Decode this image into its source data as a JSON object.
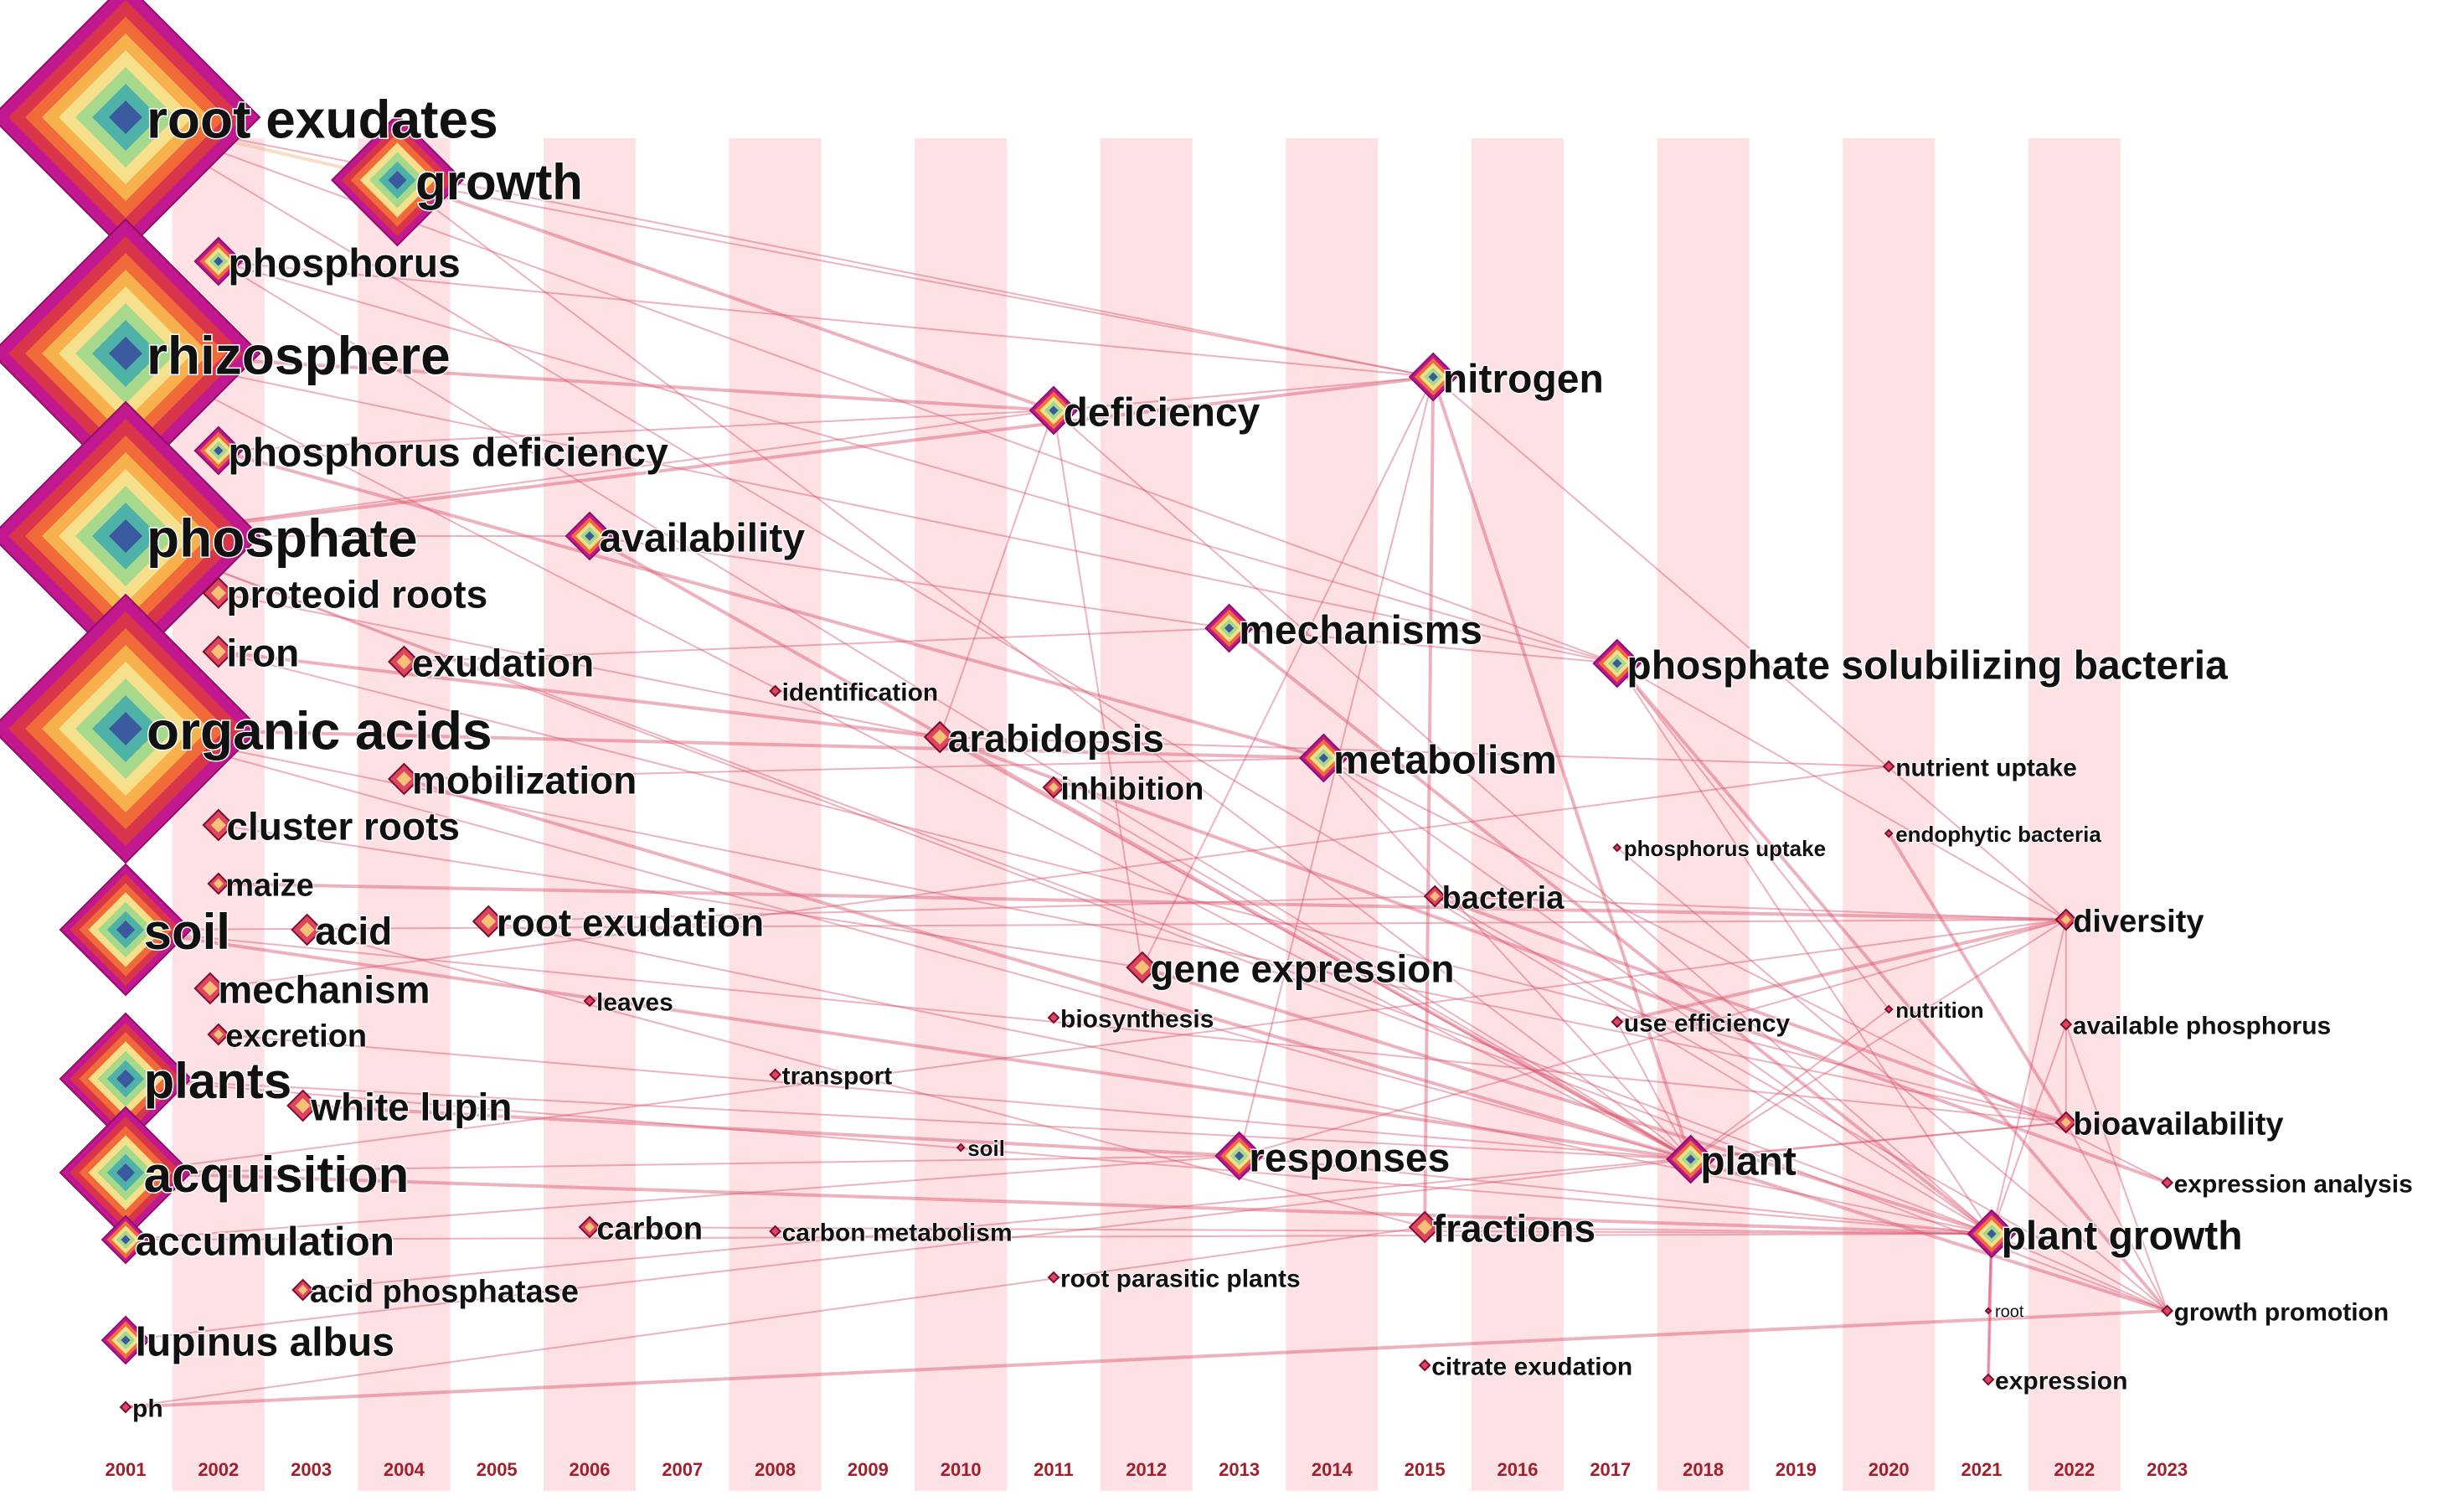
{
  "years": [
    "2001",
    "2002",
    "2003",
    "2004",
    "2005",
    "2006",
    "2007",
    "2008",
    "2009",
    "2010",
    "2011",
    "2012",
    "2013",
    "2014",
    "2015",
    "2016",
    "2017",
    "2018",
    "2019",
    "2020",
    "2021",
    "2022",
    "2023"
  ],
  "keywords": [
    {
      "id": "root-exudates",
      "label": "root exudates",
      "year": "2001",
      "rank": 1
    },
    {
      "id": "growth",
      "label": "growth",
      "year": "2004",
      "rank": 2
    },
    {
      "id": "phosphorus",
      "label": "phosphorus",
      "year": "2002",
      "rank": 3
    },
    {
      "id": "rhizosphere",
      "label": "rhizosphere",
      "year": "2001",
      "rank": 1
    },
    {
      "id": "phosphorus-deficiency",
      "label": "phosphorus deficiency",
      "year": "2002",
      "rank": 3
    },
    {
      "id": "phosphate",
      "label": "phosphate",
      "year": "2001",
      "rank": 1
    },
    {
      "id": "proteoid-roots",
      "label": "proteoid roots",
      "year": "2002",
      "rank": 4
    },
    {
      "id": "iron",
      "label": "iron",
      "year": "2002",
      "rank": 4
    },
    {
      "id": "organic-acids",
      "label": "organic acids",
      "year": "2001",
      "rank": 1
    },
    {
      "id": "cluster-roots",
      "label": "cluster roots",
      "year": "2002",
      "rank": 4
    },
    {
      "id": "maize",
      "label": "maize",
      "year": "2002",
      "rank": 5
    },
    {
      "id": "soil",
      "label": "soil",
      "year": "2001",
      "rank": 2
    },
    {
      "id": "acid",
      "label": "acid",
      "year": "2003",
      "rank": 4
    },
    {
      "id": "mechanism",
      "label": "mechanism",
      "year": "2002",
      "rank": 4
    },
    {
      "id": "excretion",
      "label": "excretion",
      "year": "2002",
      "rank": 5
    },
    {
      "id": "plants",
      "label": "plants",
      "year": "2001",
      "rank": 2
    },
    {
      "id": "white-lupin",
      "label": "white lupin",
      "year": "2003",
      "rank": 4
    },
    {
      "id": "acquisition",
      "label": "acquisition",
      "year": "2001",
      "rank": 2
    },
    {
      "id": "accumulation",
      "label": "accumulation",
      "year": "2001",
      "rank": 3
    },
    {
      "id": "acid-phosphatase",
      "label": "acid phosphatase",
      "year": "2003",
      "rank": 5
    },
    {
      "id": "lupinus-albus",
      "label": "lupinus albus",
      "year": "2001",
      "rank": 3
    },
    {
      "id": "ph",
      "label": "ph",
      "year": "2001",
      "rank": 6
    },
    {
      "id": "exudation",
      "label": "exudation",
      "year": "2004",
      "rank": 4
    },
    {
      "id": "mobilization",
      "label": "mobilization",
      "year": "2004",
      "rank": 4
    },
    {
      "id": "root-exudation",
      "label": "root exudation",
      "year": "2005",
      "rank": 4
    },
    {
      "id": "leaves",
      "label": "leaves",
      "year": "2006",
      "rank": 6
    },
    {
      "id": "availability",
      "label": "availability",
      "year": "2006",
      "rank": 3
    },
    {
      "id": "carbon",
      "label": "carbon",
      "year": "2006",
      "rank": 5
    },
    {
      "id": "identification",
      "label": "identification",
      "year": "2008",
      "rank": 6
    },
    {
      "id": "transport",
      "label": "transport",
      "year": "2008",
      "rank": 6
    },
    {
      "id": "carbon-metabolism",
      "label": "carbon metabolism",
      "year": "2008",
      "rank": 6
    },
    {
      "id": "soil-small",
      "label": "soil",
      "year": "2010",
      "rank": 7
    },
    {
      "id": "deficiency",
      "label": "deficiency",
      "year": "2011",
      "rank": 3
    },
    {
      "id": "arabidopsis",
      "label": "arabidopsis",
      "year": "2010",
      "rank": 4
    },
    {
      "id": "inhibition",
      "label": "inhibition",
      "year": "2011",
      "rank": 5
    },
    {
      "id": "biosynthesis",
      "label": "biosynthesis",
      "year": "2011",
      "rank": 6
    },
    {
      "id": "root-parasitic-plants",
      "label": "root parasitic plants",
      "year": "2011",
      "rank": 6
    },
    {
      "id": "gene-expression",
      "label": "gene expression",
      "year": "2012",
      "rank": 4
    },
    {
      "id": "mechanisms",
      "label": "mechanisms",
      "year": "2013",
      "rank": 3
    },
    {
      "id": "responses",
      "label": "responses",
      "year": "2013",
      "rank": 3
    },
    {
      "id": "metabolism",
      "label": "metabolism",
      "year": "2014",
      "rank": 3
    },
    {
      "id": "nitrogen",
      "label": "nitrogen",
      "year": "2015",
      "rank": 3
    },
    {
      "id": "bacteria",
      "label": "bacteria",
      "year": "2015",
      "rank": 5
    },
    {
      "id": "fractions",
      "label": "fractions",
      "year": "2015",
      "rank": 4
    },
    {
      "id": "citrate-exudation",
      "label": "citrate exudation",
      "year": "2015",
      "rank": 6
    },
    {
      "id": "phosphate-solubilizing-bacteria",
      "label": "phosphate solubilizing bacteria",
      "year": "2017",
      "rank": 3
    },
    {
      "id": "phosphorus-uptake",
      "label": "phosphorus uptake",
      "year": "2017",
      "rank": 7
    },
    {
      "id": "use-efficiency",
      "label": "use efficiency",
      "year": "2017",
      "rank": 6
    },
    {
      "id": "plant",
      "label": "plant",
      "year": "2018",
      "rank": 3
    },
    {
      "id": "nutrient-uptake",
      "label": "nutrient uptake",
      "year": "2020",
      "rank": 6
    },
    {
      "id": "endophytic-bacteria",
      "label": "endophytic bacteria",
      "year": "2020",
      "rank": 7
    },
    {
      "id": "nutrition",
      "label": "nutrition",
      "year": "2020",
      "rank": 7
    },
    {
      "id": "plant-growth",
      "label": "plant growth",
      "year": "2021",
      "rank": 3
    },
    {
      "id": "root",
      "label": "root",
      "year": "2021",
      "rank": 8
    },
    {
      "id": "expression",
      "label": "expression",
      "year": "2021",
      "rank": 6
    },
    {
      "id": "diversity",
      "label": "diversity",
      "year": "2022",
      "rank": 5
    },
    {
      "id": "available-phosphorus",
      "label": "available phosphorus",
      "year": "2022",
      "rank": 6
    },
    {
      "id": "bioavailability",
      "label": "bioavailability",
      "year": "2022",
      "rank": 5
    },
    {
      "id": "expression-analysis",
      "label": "expression analysis",
      "year": "2023",
      "rank": 6
    },
    {
      "id": "growth-promotion",
      "label": "growth promotion",
      "year": "2023",
      "rank": 6
    }
  ],
  "links": [
    [
      "root-exudates",
      "growth"
    ],
    [
      "growth",
      "nitrogen"
    ],
    [
      "root-exudates",
      "nitrogen"
    ],
    [
      "deficiency",
      "nitrogen"
    ],
    [
      "nitrogen",
      "plant"
    ],
    [
      "nitrogen",
      "gene-expression"
    ],
    [
      "nitrogen",
      "responses"
    ],
    [
      "nitrogen",
      "diversity"
    ],
    [
      "nitrogen",
      "fractions"
    ],
    [
      "deficiency",
      "arabidopsis"
    ],
    [
      "deficiency",
      "plant-growth"
    ],
    [
      "deficiency",
      "phosphate"
    ],
    [
      "availability",
      "plant"
    ],
    [
      "availability",
      "mechanisms"
    ],
    [
      "availability",
      "phosphate"
    ],
    [
      "mechanisms",
      "phosphate-solubilizing-bacteria"
    ],
    [
      "mechanisms",
      "plant-growth"
    ],
    [
      "phosphate-solubilizing-bacteria",
      "plant-growth"
    ],
    [
      "phosphate-solubilizing-bacteria",
      "diversity"
    ],
    [
      "phosphate-solubilizing-bacteria",
      "nutrition"
    ],
    [
      "phosphate-solubilizing-bacteria",
      "growth-promotion"
    ],
    [
      "metabolism",
      "plant"
    ],
    [
      "metabolism",
      "plant-growth"
    ],
    [
      "metabolism",
      "expression-analysis"
    ],
    [
      "arabidopsis",
      "expression-analysis"
    ],
    [
      "arabidopsis",
      "plant"
    ],
    [
      "arabidopsis",
      "nutrient-uptake"
    ],
    [
      "bacteria",
      "diversity"
    ],
    [
      "bacteria",
      "bioavailability"
    ],
    [
      "bacteria",
      "growth-promotion"
    ],
    [
      "plant",
      "bioavailability"
    ],
    [
      "plant",
      "diversity"
    ],
    [
      "plant",
      "growth-promotion"
    ],
    [
      "plant-growth",
      "diversity"
    ],
    [
      "plant-growth",
      "available-phosphorus"
    ],
    [
      "plant-growth",
      "growth-promotion"
    ],
    [
      "plant-growth",
      "expression"
    ],
    [
      "diversity",
      "bioavailability"
    ],
    [
      "bioavailability",
      "growth-promotion"
    ],
    [
      "gene-expression",
      "deficiency"
    ],
    [
      "gene-expression",
      "plant-growth"
    ],
    [
      "responses",
      "plant-growth"
    ],
    [
      "responses",
      "diversity"
    ],
    [
      "fractions",
      "plant-growth"
    ],
    [
      "acquisition",
      "plant-growth"
    ],
    [
      "acquisition",
      "responses"
    ],
    [
      "acquisition",
      "diversity"
    ],
    [
      "soil",
      "diversity"
    ],
    [
      "soil",
      "plant"
    ],
    [
      "soil",
      "bioavailability"
    ],
    [
      "plants",
      "plant-growth"
    ],
    [
      "plants",
      "plant"
    ],
    [
      "organic-acids",
      "metabolism"
    ],
    [
      "organic-acids",
      "plant"
    ],
    [
      "organic-acids",
      "bioavailability"
    ],
    [
      "rhizosphere",
      "plant"
    ],
    [
      "rhizosphere",
      "deficiency"
    ],
    [
      "rhizosphere",
      "phosphate-solubilizing-bacteria"
    ],
    [
      "phosphate",
      "plant-growth"
    ],
    [
      "phosphate",
      "growth-promotion"
    ],
    [
      "phosphate",
      "nitrogen"
    ],
    [
      "phosphorus",
      "phosphate-solubilizing-bacteria"
    ],
    [
      "phosphorus",
      "plant"
    ],
    [
      "phosphorus",
      "nitrogen"
    ],
    [
      "iron",
      "arabidopsis"
    ],
    [
      "iron",
      "bioavailability"
    ],
    [
      "accumulation",
      "responses"
    ],
    [
      "accumulation",
      "plant-growth"
    ],
    [
      "ph",
      "growth-promotion"
    ],
    [
      "ph",
      "fractions"
    ],
    [
      "lupinus-albus",
      "plant"
    ],
    [
      "mobilization",
      "metabolism"
    ],
    [
      "mobilization",
      "plant"
    ],
    [
      "exudation",
      "mechanisms"
    ],
    [
      "root-exudation",
      "bacteria"
    ],
    [
      "root-exudation",
      "plant-growth"
    ],
    [
      "white-lupin",
      "responses"
    ],
    [
      "carbon",
      "plant-growth"
    ],
    [
      "acid",
      "fractions"
    ],
    [
      "mechanism",
      "nutrient-uptake"
    ],
    [
      "phosphorus-deficiency",
      "metabolism"
    ],
    [
      "phosphorus-deficiency",
      "deficiency"
    ],
    [
      "proteoid-roots",
      "arabidopsis"
    ],
    [
      "cluster-roots",
      "gene-expression"
    ],
    [
      "maize",
      "diversity"
    ],
    [
      "excretion",
      "plant"
    ],
    [
      "acid-phosphatase",
      "bioavailability"
    ],
    [
      "growth",
      "plant"
    ],
    [
      "growth",
      "deficiency"
    ],
    [
      "root-exudates",
      "plant-growth"
    ],
    [
      "root-exudates",
      "phosphate-solubilizing-bacteria"
    ],
    [
      "use-efficiency",
      "plant"
    ],
    [
      "use-efficiency",
      "diversity"
    ],
    [
      "phosphorus-uptake",
      "growth-promotion"
    ],
    [
      "inhibition",
      "plant"
    ],
    [
      "nutrition",
      "plant"
    ],
    [
      "endophytic-bacteria",
      "bioavailability"
    ],
    [
      "available-phosphorus",
      "growth-promotion"
    ],
    [
      "expression",
      "plant-growth"
    ],
    [
      "root",
      "plant-growth"
    ]
  ],
  "colors": {
    "band": "#fde1e4",
    "axis_text": "#a01f2a",
    "link_main": "#d9546f",
    "link_early": "#f2b680",
    "node_outer": "#c2188f",
    "node_ring": "#d8354b"
  }
}
